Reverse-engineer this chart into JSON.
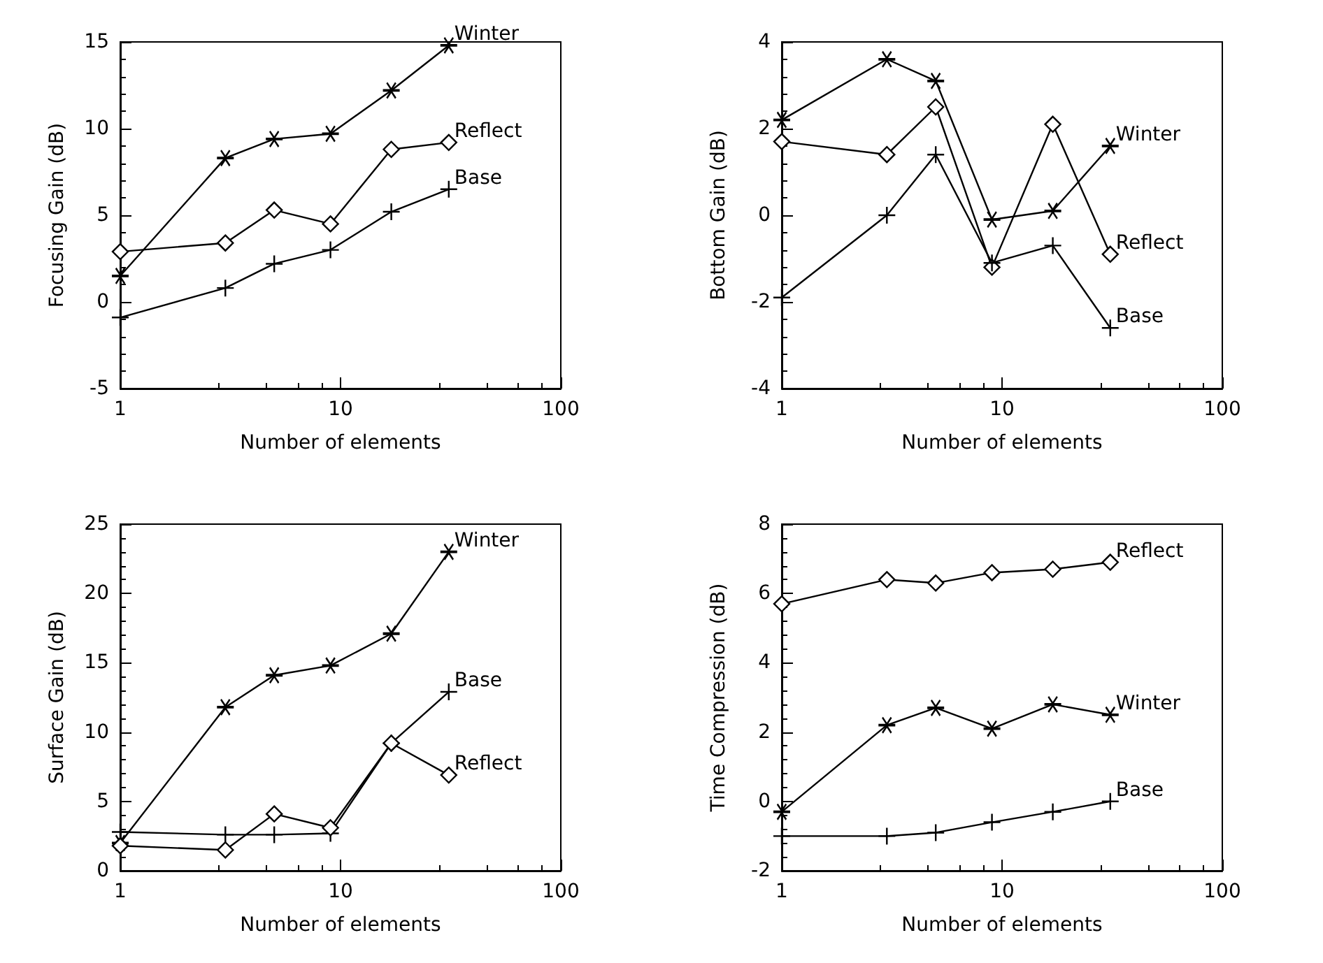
{
  "chart_data": [
    {
      "type": "line",
      "xlabel": "Number of elements",
      "ylabel": "Focusing Gain (dB)",
      "x": [
        1,
        3,
        5,
        9,
        17,
        31
      ],
      "log": "x",
      "xlim": [
        1,
        100
      ],
      "xticks": [
        1,
        10,
        100
      ],
      "ylim": [
        -5,
        15
      ],
      "yticks": [
        -5,
        0,
        5,
        10,
        15
      ],
      "grid": false,
      "legend": false,
      "series": [
        {
          "name": "Winter",
          "color": "#000000",
          "marker": "star",
          "values": [
            1.5,
            8.3,
            9.4,
            9.7,
            12.2,
            14.8
          ]
        },
        {
          "name": "Reflect",
          "color": "#000000",
          "marker": "diamond",
          "values": [
            2.9,
            3.4,
            5.3,
            4.5,
            8.8,
            9.2
          ]
        },
        {
          "name": "Base",
          "color": "#000000",
          "marker": "cross",
          "values": [
            -0.9,
            0.8,
            2.2,
            3.0,
            5.2,
            6.5
          ]
        }
      ]
    },
    {
      "type": "line",
      "xlabel": "Number of elements",
      "ylabel": "Bottom Gain (dB)",
      "x": [
        1,
        3,
        5,
        9,
        17,
        31
      ],
      "log": "x",
      "xlim": [
        1,
        100
      ],
      "xticks": [
        1,
        10,
        100
      ],
      "ylim": [
        -4,
        4
      ],
      "yticks": [
        -4,
        -2,
        0,
        2,
        4
      ],
      "grid": false,
      "legend": false,
      "series": [
        {
          "name": "Winter",
          "color": "#000000",
          "marker": "star",
          "values": [
            2.2,
            3.6,
            3.1,
            -0.1,
            0.1,
            1.6
          ]
        },
        {
          "name": "Reflect",
          "color": "#000000",
          "marker": "diamond",
          "values": [
            1.7,
            1.4,
            2.5,
            -1.2,
            2.1,
            -0.9
          ]
        },
        {
          "name": "Base",
          "color": "#000000",
          "marker": "cross",
          "values": [
            -1.9,
            0.0,
            1.4,
            -1.1,
            -0.7,
            -2.6
          ]
        }
      ]
    },
    {
      "type": "line",
      "xlabel": "Number of elements",
      "ylabel": "Surface Gain (dB)",
      "x": [
        1,
        3,
        5,
        9,
        17,
        31
      ],
      "log": "x",
      "xlim": [
        1,
        100
      ],
      "xticks": [
        1,
        10,
        100
      ],
      "ylim": [
        0,
        25
      ],
      "yticks": [
        0,
        5,
        10,
        15,
        20,
        25
      ],
      "grid": false,
      "legend": false,
      "series": [
        {
          "name": "Winter",
          "color": "#000000",
          "marker": "star",
          "values": [
            2.0,
            11.8,
            14.1,
            14.8,
            17.1,
            23.0
          ]
        },
        {
          "name": "Base",
          "color": "#000000",
          "marker": "cross",
          "values": [
            2.8,
            2.6,
            2.6,
            2.7,
            9.2,
            12.9
          ]
        },
        {
          "name": "Reflect",
          "color": "#000000",
          "marker": "diamond",
          "values": [
            1.8,
            1.5,
            4.1,
            3.1,
            9.2,
            6.9
          ]
        }
      ]
    },
    {
      "type": "line",
      "xlabel": "Number of elements",
      "ylabel": "Time Compression (dB)",
      "x": [
        1,
        3,
        5,
        9,
        17,
        31
      ],
      "log": "x",
      "xlim": [
        1,
        100
      ],
      "xticks": [
        1,
        10,
        100
      ],
      "ylim": [
        -2,
        8
      ],
      "yticks": [
        -2,
        0,
        2,
        4,
        6,
        8
      ],
      "grid": false,
      "legend": false,
      "series": [
        {
          "name": "Reflect",
          "color": "#000000",
          "marker": "diamond",
          "values": [
            5.7,
            6.4,
            6.3,
            6.6,
            6.7,
            6.9
          ]
        },
        {
          "name": "Winter",
          "color": "#000000",
          "marker": "star",
          "values": [
            -0.3,
            2.2,
            2.7,
            2.1,
            2.8,
            2.5
          ]
        },
        {
          "name": "Base",
          "color": "#000000",
          "marker": "cross",
          "values": [
            -1.0,
            -1.0,
            -0.9,
            -0.6,
            -0.3,
            0.0
          ]
        }
      ]
    }
  ]
}
